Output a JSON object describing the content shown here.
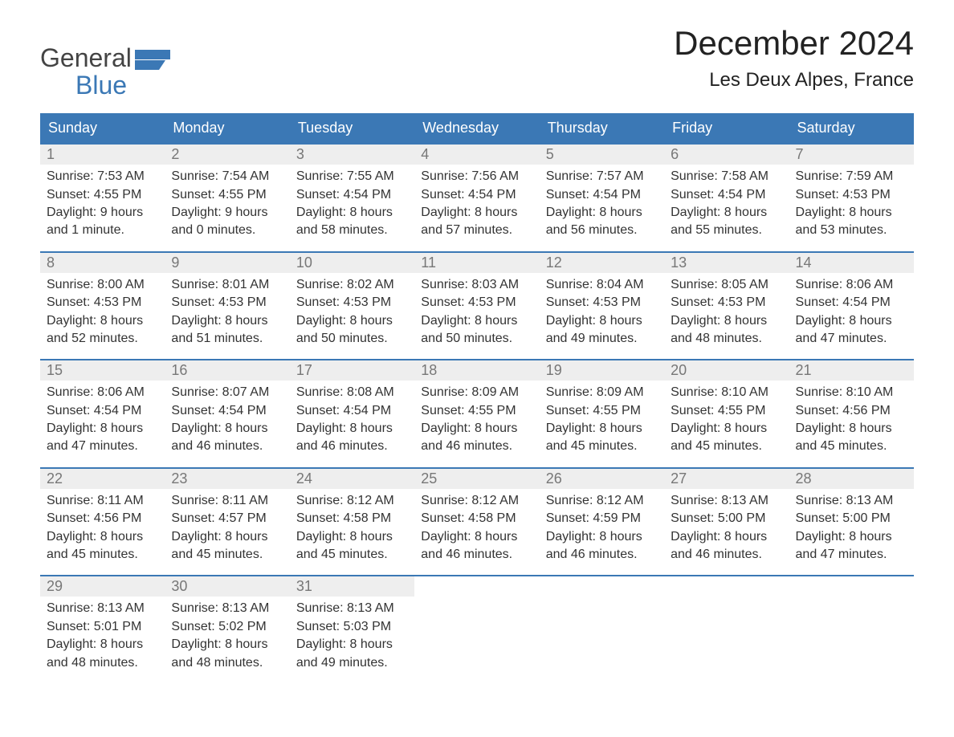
{
  "logo": {
    "line1": "General",
    "line2": "Blue"
  },
  "header": {
    "title": "December 2024",
    "subtitle": "Les Deux Alpes, France"
  },
  "colors": {
    "brand_blue": "#3b78b5",
    "header_text": "#ffffff",
    "daynum_bg": "#eeeeee",
    "daynum_text": "#777777",
    "body_text": "#333333",
    "background": "#ffffff"
  },
  "typography": {
    "title_fontsize": 42,
    "subtitle_fontsize": 24,
    "weekday_fontsize": 18,
    "daybody_fontsize": 16,
    "font_family": "Arial"
  },
  "layout": {
    "columns": 7,
    "rows": 5,
    "week_border_top": "2px solid #3b78b5"
  },
  "weekdays": [
    "Sunday",
    "Monday",
    "Tuesday",
    "Wednesday",
    "Thursday",
    "Friday",
    "Saturday"
  ],
  "weeks": [
    [
      {
        "n": "1",
        "sunrise": "Sunrise: 7:53 AM",
        "sunset": "Sunset: 4:55 PM",
        "d1": "Daylight: 9 hours",
        "d2": "and 1 minute."
      },
      {
        "n": "2",
        "sunrise": "Sunrise: 7:54 AM",
        "sunset": "Sunset: 4:55 PM",
        "d1": "Daylight: 9 hours",
        "d2": "and 0 minutes."
      },
      {
        "n": "3",
        "sunrise": "Sunrise: 7:55 AM",
        "sunset": "Sunset: 4:54 PM",
        "d1": "Daylight: 8 hours",
        "d2": "and 58 minutes."
      },
      {
        "n": "4",
        "sunrise": "Sunrise: 7:56 AM",
        "sunset": "Sunset: 4:54 PM",
        "d1": "Daylight: 8 hours",
        "d2": "and 57 minutes."
      },
      {
        "n": "5",
        "sunrise": "Sunrise: 7:57 AM",
        "sunset": "Sunset: 4:54 PM",
        "d1": "Daylight: 8 hours",
        "d2": "and 56 minutes."
      },
      {
        "n": "6",
        "sunrise": "Sunrise: 7:58 AM",
        "sunset": "Sunset: 4:54 PM",
        "d1": "Daylight: 8 hours",
        "d2": "and 55 minutes."
      },
      {
        "n": "7",
        "sunrise": "Sunrise: 7:59 AM",
        "sunset": "Sunset: 4:53 PM",
        "d1": "Daylight: 8 hours",
        "d2": "and 53 minutes."
      }
    ],
    [
      {
        "n": "8",
        "sunrise": "Sunrise: 8:00 AM",
        "sunset": "Sunset: 4:53 PM",
        "d1": "Daylight: 8 hours",
        "d2": "and 52 minutes."
      },
      {
        "n": "9",
        "sunrise": "Sunrise: 8:01 AM",
        "sunset": "Sunset: 4:53 PM",
        "d1": "Daylight: 8 hours",
        "d2": "and 51 minutes."
      },
      {
        "n": "10",
        "sunrise": "Sunrise: 8:02 AM",
        "sunset": "Sunset: 4:53 PM",
        "d1": "Daylight: 8 hours",
        "d2": "and 50 minutes."
      },
      {
        "n": "11",
        "sunrise": "Sunrise: 8:03 AM",
        "sunset": "Sunset: 4:53 PM",
        "d1": "Daylight: 8 hours",
        "d2": "and 50 minutes."
      },
      {
        "n": "12",
        "sunrise": "Sunrise: 8:04 AM",
        "sunset": "Sunset: 4:53 PM",
        "d1": "Daylight: 8 hours",
        "d2": "and 49 minutes."
      },
      {
        "n": "13",
        "sunrise": "Sunrise: 8:05 AM",
        "sunset": "Sunset: 4:53 PM",
        "d1": "Daylight: 8 hours",
        "d2": "and 48 minutes."
      },
      {
        "n": "14",
        "sunrise": "Sunrise: 8:06 AM",
        "sunset": "Sunset: 4:54 PM",
        "d1": "Daylight: 8 hours",
        "d2": "and 47 minutes."
      }
    ],
    [
      {
        "n": "15",
        "sunrise": "Sunrise: 8:06 AM",
        "sunset": "Sunset: 4:54 PM",
        "d1": "Daylight: 8 hours",
        "d2": "and 47 minutes."
      },
      {
        "n": "16",
        "sunrise": "Sunrise: 8:07 AM",
        "sunset": "Sunset: 4:54 PM",
        "d1": "Daylight: 8 hours",
        "d2": "and 46 minutes."
      },
      {
        "n": "17",
        "sunrise": "Sunrise: 8:08 AM",
        "sunset": "Sunset: 4:54 PM",
        "d1": "Daylight: 8 hours",
        "d2": "and 46 minutes."
      },
      {
        "n": "18",
        "sunrise": "Sunrise: 8:09 AM",
        "sunset": "Sunset: 4:55 PM",
        "d1": "Daylight: 8 hours",
        "d2": "and 46 minutes."
      },
      {
        "n": "19",
        "sunrise": "Sunrise: 8:09 AM",
        "sunset": "Sunset: 4:55 PM",
        "d1": "Daylight: 8 hours",
        "d2": "and 45 minutes."
      },
      {
        "n": "20",
        "sunrise": "Sunrise: 8:10 AM",
        "sunset": "Sunset: 4:55 PM",
        "d1": "Daylight: 8 hours",
        "d2": "and 45 minutes."
      },
      {
        "n": "21",
        "sunrise": "Sunrise: 8:10 AM",
        "sunset": "Sunset: 4:56 PM",
        "d1": "Daylight: 8 hours",
        "d2": "and 45 minutes."
      }
    ],
    [
      {
        "n": "22",
        "sunrise": "Sunrise: 8:11 AM",
        "sunset": "Sunset: 4:56 PM",
        "d1": "Daylight: 8 hours",
        "d2": "and 45 minutes."
      },
      {
        "n": "23",
        "sunrise": "Sunrise: 8:11 AM",
        "sunset": "Sunset: 4:57 PM",
        "d1": "Daylight: 8 hours",
        "d2": "and 45 minutes."
      },
      {
        "n": "24",
        "sunrise": "Sunrise: 8:12 AM",
        "sunset": "Sunset: 4:58 PM",
        "d1": "Daylight: 8 hours",
        "d2": "and 45 minutes."
      },
      {
        "n": "25",
        "sunrise": "Sunrise: 8:12 AM",
        "sunset": "Sunset: 4:58 PM",
        "d1": "Daylight: 8 hours",
        "d2": "and 46 minutes."
      },
      {
        "n": "26",
        "sunrise": "Sunrise: 8:12 AM",
        "sunset": "Sunset: 4:59 PM",
        "d1": "Daylight: 8 hours",
        "d2": "and 46 minutes."
      },
      {
        "n": "27",
        "sunrise": "Sunrise: 8:13 AM",
        "sunset": "Sunset: 5:00 PM",
        "d1": "Daylight: 8 hours",
        "d2": "and 46 minutes."
      },
      {
        "n": "28",
        "sunrise": "Sunrise: 8:13 AM",
        "sunset": "Sunset: 5:00 PM",
        "d1": "Daylight: 8 hours",
        "d2": "and 47 minutes."
      }
    ],
    [
      {
        "n": "29",
        "sunrise": "Sunrise: 8:13 AM",
        "sunset": "Sunset: 5:01 PM",
        "d1": "Daylight: 8 hours",
        "d2": "and 48 minutes."
      },
      {
        "n": "30",
        "sunrise": "Sunrise: 8:13 AM",
        "sunset": "Sunset: 5:02 PM",
        "d1": "Daylight: 8 hours",
        "d2": "and 48 minutes."
      },
      {
        "n": "31",
        "sunrise": "Sunrise: 8:13 AM",
        "sunset": "Sunset: 5:03 PM",
        "d1": "Daylight: 8 hours",
        "d2": "and 49 minutes."
      },
      {
        "empty": true
      },
      {
        "empty": true
      },
      {
        "empty": true
      },
      {
        "empty": true
      }
    ]
  ]
}
